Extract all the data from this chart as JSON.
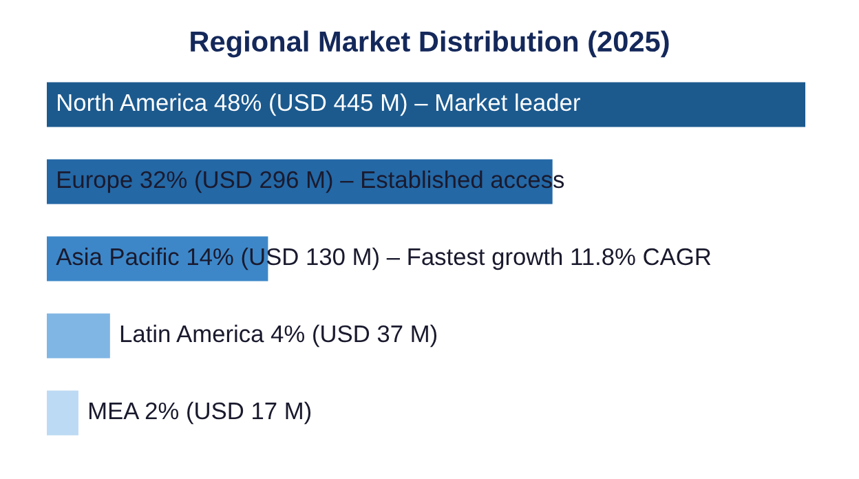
{
  "chart_data": {
    "type": "bar",
    "orientation": "horizontal",
    "xlim": [
      0,
      48
    ],
    "title": "Regional Market Distribution (2025)",
    "categories": [
      null,
      null,
      null,
      null,
      null
    ],
    "values": [
      48,
      32,
      14,
      4,
      2
    ],
    "colors": [
      "#1c5a8e",
      "#2468a6",
      "#3d87c8",
      "#80b6e4",
      "#bcdaf3"
    ],
    "value_labels": [
      "North America 48% (USD 445 M) – Market leader",
      "Europe 32% (USD 296 M) – Established access",
      "Asia Pacific 14% (USD 130 M) – Fastest growth 11.8% CAGR",
      "Latin America 4% (USD 37 M)",
      "MEA 2% (USD 17 M)"
    ],
    "legend": false
  }
}
